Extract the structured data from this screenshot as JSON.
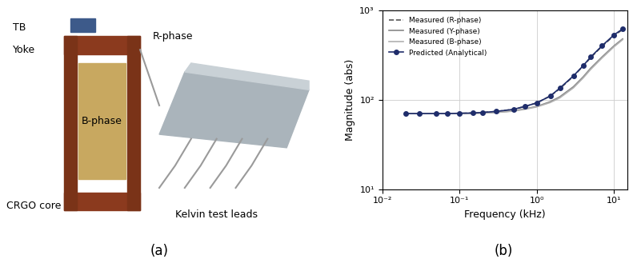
{
  "photo": {
    "panel_label": "(a)",
    "labels": [
      "TB",
      "Yoke",
      "R-phase",
      "B-phase",
      "CRGO core",
      "Kelvin test leads"
    ]
  },
  "chart_data": {
    "type": "line",
    "panel_label": "(b)",
    "x_label": "Frequency (kHz)",
    "y_label": "Magnitude (abs)",
    "log": true,
    "grid": true,
    "legend": "upper left",
    "x": [
      0.02,
      0.03,
      0.05,
      0.07,
      0.1,
      0.15,
      0.2,
      0.3,
      0.5,
      0.7,
      1,
      1.5,
      2,
      3,
      4,
      5,
      7,
      10,
      13
    ],
    "series": [
      {
        "name": "Measured (R-phase)",
        "color": "#555555",
        "line_style": "dashed",
        "marker": "none",
        "values": [
          70,
          70,
          70,
          70,
          70.5,
          71,
          72,
          74,
          78,
          84,
          92,
          110,
          133,
          183,
          238,
          295,
          395,
          520,
          610
        ]
      },
      {
        "name": "Measured (Y-phase)",
        "color": "#888888",
        "line_style": "solid",
        "marker": "none",
        "values": [
          70,
          70,
          70,
          70,
          70,
          70.5,
          71,
          72,
          75,
          79,
          84,
          95,
          108,
          140,
          180,
          225,
          300,
          400,
          480
        ]
      },
      {
        "name": "Measured (B-phase)",
        "color": "#b0b0b0",
        "line_style": "solid",
        "marker": "none",
        "values": [
          70,
          70,
          70,
          70,
          70,
          70.5,
          71,
          72,
          74.5,
          78,
          83,
          93,
          105,
          136,
          175,
          218,
          292,
          390,
          470
        ]
      },
      {
        "name": "Predicted (Analytical)",
        "color": "#1f2d6b",
        "line_style": "solid",
        "marker": "circle",
        "values": [
          70,
          70,
          70,
          70,
          70.5,
          71,
          72,
          74,
          78,
          84,
          92,
          110,
          135,
          185,
          240,
          300,
          400,
          530,
          620
        ]
      }
    ],
    "xlim": [
      0.01,
      15
    ],
    "ylim": [
      10,
      1000
    ],
    "xticks": [
      {
        "value": 0.01,
        "label": "10⁻²"
      },
      {
        "value": 0.1,
        "label": "10⁻¹"
      },
      {
        "value": 1,
        "label": "10⁰"
      },
      {
        "value": 10,
        "label": "10¹"
      }
    ],
    "yticks": [
      {
        "value": 10,
        "label": "10¹"
      },
      {
        "value": 100,
        "label": "10²"
      },
      {
        "value": 1000,
        "label": "10³"
      }
    ]
  }
}
